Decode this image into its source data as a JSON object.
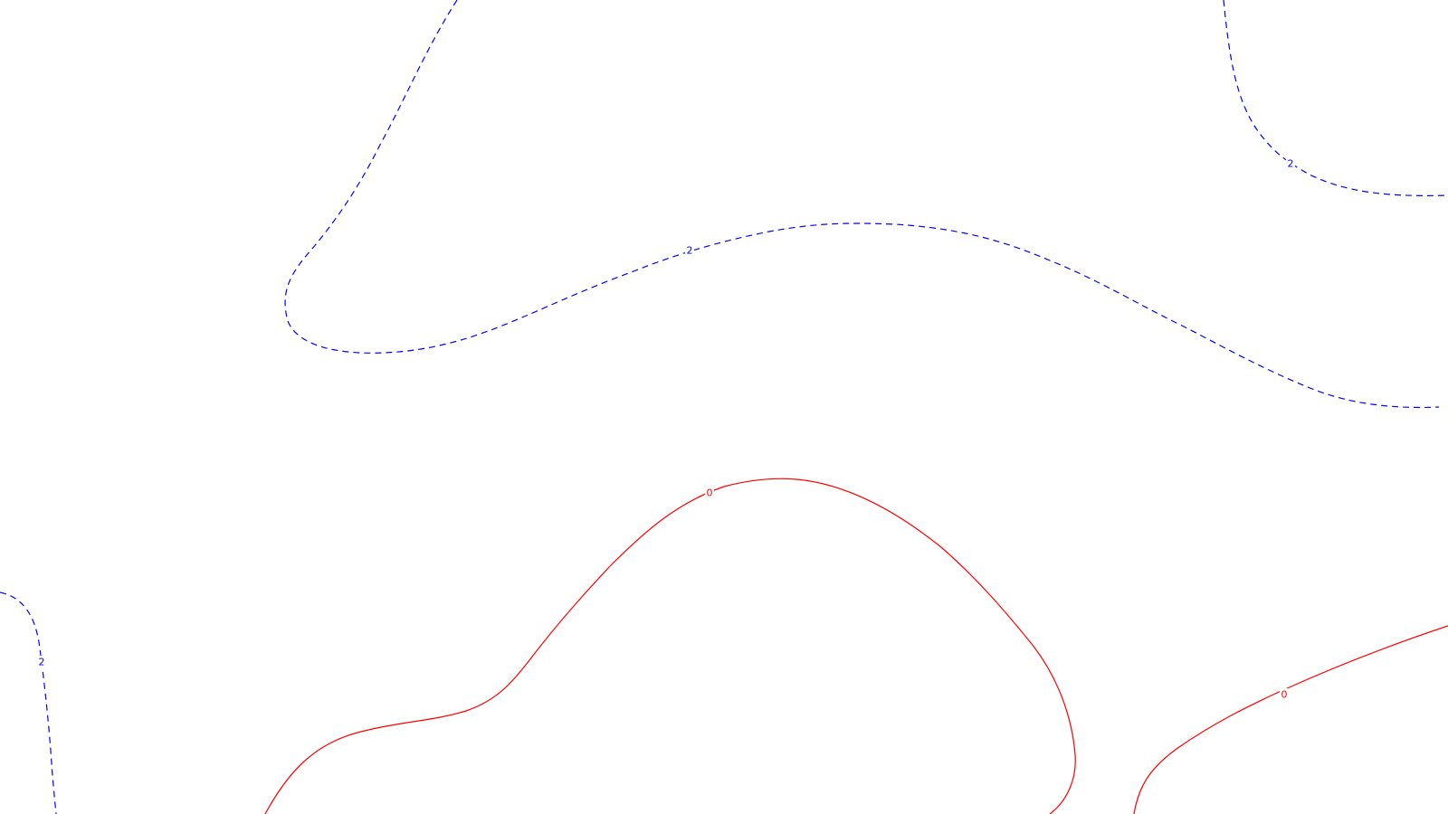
{
  "map": {
    "background": "#ffffff",
    "contours": [
      {
        "id": "blue-contour-upper-left",
        "color": "#0000ff",
        "style": "dashed",
        "labels": [
          "2"
        ]
      },
      {
        "id": "blue-contour-upper-right",
        "color": "#0000ff",
        "style": "dashed",
        "labels": [
          "2"
        ]
      },
      {
        "id": "blue-contour-lower-left",
        "color": "#0000ff",
        "style": "dashed",
        "labels": [
          "2"
        ]
      },
      {
        "id": "red-contour-center",
        "color": "#ff0000",
        "style": "solid",
        "labels": [
          "0"
        ]
      },
      {
        "id": "red-contour-lower-right",
        "color": "#ff0000",
        "style": "solid",
        "labels": [
          "0"
        ]
      }
    ]
  }
}
